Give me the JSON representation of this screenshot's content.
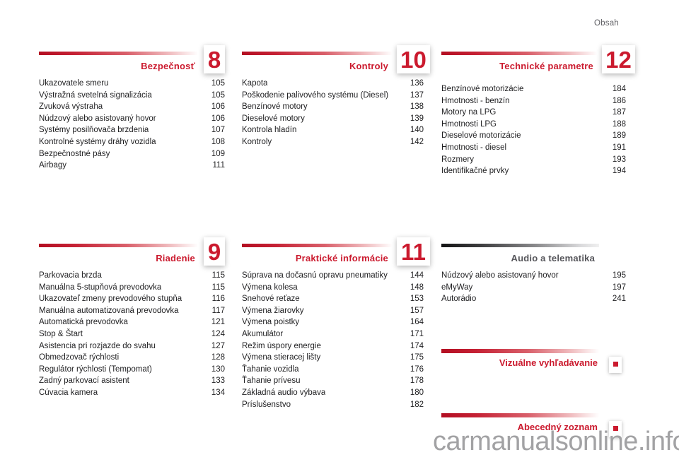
{
  "header": {
    "page_label": "Obsah"
  },
  "watermark": "carmanualsonline.info",
  "colors": {
    "accent_red": "#cb1a2e",
    "gray_title": "#55555a",
    "text": "#1e1e20",
    "watermark_gray": "#a2a2a4"
  },
  "sections": [
    {
      "title": "Bezpečnosť",
      "number": "8",
      "items": [
        {
          "label": "Ukazovatele smeru",
          "page": "105"
        },
        {
          "label": "Výstražná svetelná signalizácia",
          "page": "105"
        },
        {
          "label": "Zvuková výstraha",
          "page": "106"
        },
        {
          "label": "Núdzový alebo asistovaný hovor",
          "page": "106"
        },
        {
          "label": "Systémy posilňovača brzdenia",
          "page": "107"
        },
        {
          "label": "Kontrolné systémy dráhy vozidla",
          "page": "108"
        },
        {
          "label": "Bezpečnostné pásy",
          "page": "109"
        },
        {
          "label": "Airbagy",
          "page": "111"
        }
      ]
    },
    {
      "title": "Kontroly",
      "number": "10",
      "items": [
        {
          "label": "Kapota",
          "page": "136"
        },
        {
          "label": "Poškodenie palivového systému (Diesel)",
          "page": "137"
        },
        {
          "label": "Benzínové motory",
          "page": "138"
        },
        {
          "label": "Dieselové motory",
          "page": "139"
        },
        {
          "label": "Kontrola hladín",
          "page": "140"
        },
        {
          "label": "Kontroly",
          "page": "142"
        }
      ]
    },
    {
      "title": "Technické parametre",
      "number": "12",
      "items": [
        {
          "label": "Benzínové motorizácie",
          "page": "184"
        },
        {
          "label": "Hmotnosti - benzín",
          "page": "186"
        },
        {
          "label": "Motory na LPG",
          "page": "187"
        },
        {
          "label": "Hmotnosti LPG",
          "page": "188"
        },
        {
          "label": "Dieselové motorizácie",
          "page": "189"
        },
        {
          "label": "Hmotnosti - diesel",
          "page": "191"
        },
        {
          "label": "Rozmery",
          "page": "193"
        },
        {
          "label": "Identifikačné prvky",
          "page": "194"
        }
      ]
    },
    {
      "title": "Riadenie",
      "number": "9",
      "items": [
        {
          "label": "Parkovacia brzda",
          "page": "115"
        },
        {
          "label": "Manuálna 5-stupňová prevodovka",
          "page": "115"
        },
        {
          "label": "Ukazovateľ zmeny prevodového stupňa",
          "page": "116"
        },
        {
          "label": "Manuálna automatizovaná prevodovka",
          "page": "117"
        },
        {
          "label": "Automatická prevodovka",
          "page": "121"
        },
        {
          "label": "Stop & Štart",
          "page": "124"
        },
        {
          "label": "Asistencia pri rozjazde do svahu",
          "page": "127"
        },
        {
          "label": "Obmedzovač rýchlosti",
          "page": "128"
        },
        {
          "label": "Regulátor rýchlosti (Tempomat)",
          "page": "130"
        },
        {
          "label": "Zadný parkovací asistent",
          "page": "133"
        },
        {
          "label": "Cúvacia kamera",
          "page": "134"
        }
      ]
    },
    {
      "title": "Praktické informácie",
      "number": "11",
      "items": [
        {
          "label": "Súprava na dočasnú opravu pneumatiky",
          "page": "144"
        },
        {
          "label": "Výmena kolesa",
          "page": "148"
        },
        {
          "label": "Snehové reťaze",
          "page": "153"
        },
        {
          "label": "Výmena žiarovky",
          "page": "157"
        },
        {
          "label": "Výmena poistky",
          "page": "164"
        },
        {
          "label": "Akumulátor",
          "page": "171"
        },
        {
          "label": "Režim úspory energie",
          "page": "174"
        },
        {
          "label": "Výmena stieracej lišty",
          "page": "175"
        },
        {
          "label": "Ťahanie vozidla",
          "page": "176"
        },
        {
          "label": "Ťahanie prívesu",
          "page": "178"
        },
        {
          "label": "Základná audio výbava",
          "page": "180"
        },
        {
          "label": "Príslušenstvo",
          "page": "182"
        }
      ]
    },
    {
      "title": "Audio a telematika",
      "number": "",
      "items": [
        {
          "label": "Núdzový alebo asistovaný hovor",
          "page": "195"
        },
        {
          "label": "eMyWay",
          "page": "197"
        },
        {
          "label": "Autorádio",
          "page": "241"
        }
      ]
    }
  ],
  "links": [
    {
      "title": "Vizuálne vyhľadávanie"
    },
    {
      "title": "Abecedný zoznam"
    }
  ]
}
